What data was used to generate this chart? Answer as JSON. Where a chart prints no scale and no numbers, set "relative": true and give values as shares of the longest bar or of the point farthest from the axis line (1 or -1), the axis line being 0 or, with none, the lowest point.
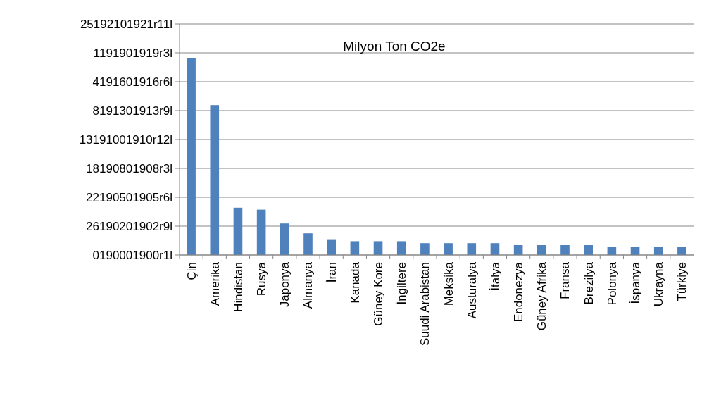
{
  "chart_data": {
    "type": "bar",
    "title": "Milyon Ton CO2e",
    "categories": [
      "Çin",
      "Amerika",
      "Hindistan",
      "Rusya",
      "Japonya",
      "Almanya",
      "İran",
      "Kanada",
      "Güney Kore",
      "İngiltere",
      "Suudi Arabistan",
      "Meksika",
      "Austuralya",
      "İtalya",
      "Endonezya",
      "Güney Afrika",
      "Fransa",
      "Brezilya",
      "Polonya",
      "İspanya",
      "Ukrayna",
      "Türkiye"
    ],
    "values": [
      1,
      0.76,
      0.24,
      0.23,
      0.16,
      0.11,
      0.08,
      0.07,
      0.07,
      0.07,
      0.06,
      0.06,
      0.06,
      0.06,
      0.05,
      0.05,
      0.05,
      0.05,
      0.04,
      0.04,
      0.04,
      0.04
    ],
    "relative": true,
    "color": "#4f81bd",
    "annotations": [
      "0190001900r1l",
      "26190201902r9l",
      "22190501905r6l",
      "18190801908r3l",
      "13191001910r12l",
      "8191301913r9l",
      "4191601916r6l",
      "1191901919r3l",
      "25192101921r11l"
    ],
    "grid": "y"
  }
}
